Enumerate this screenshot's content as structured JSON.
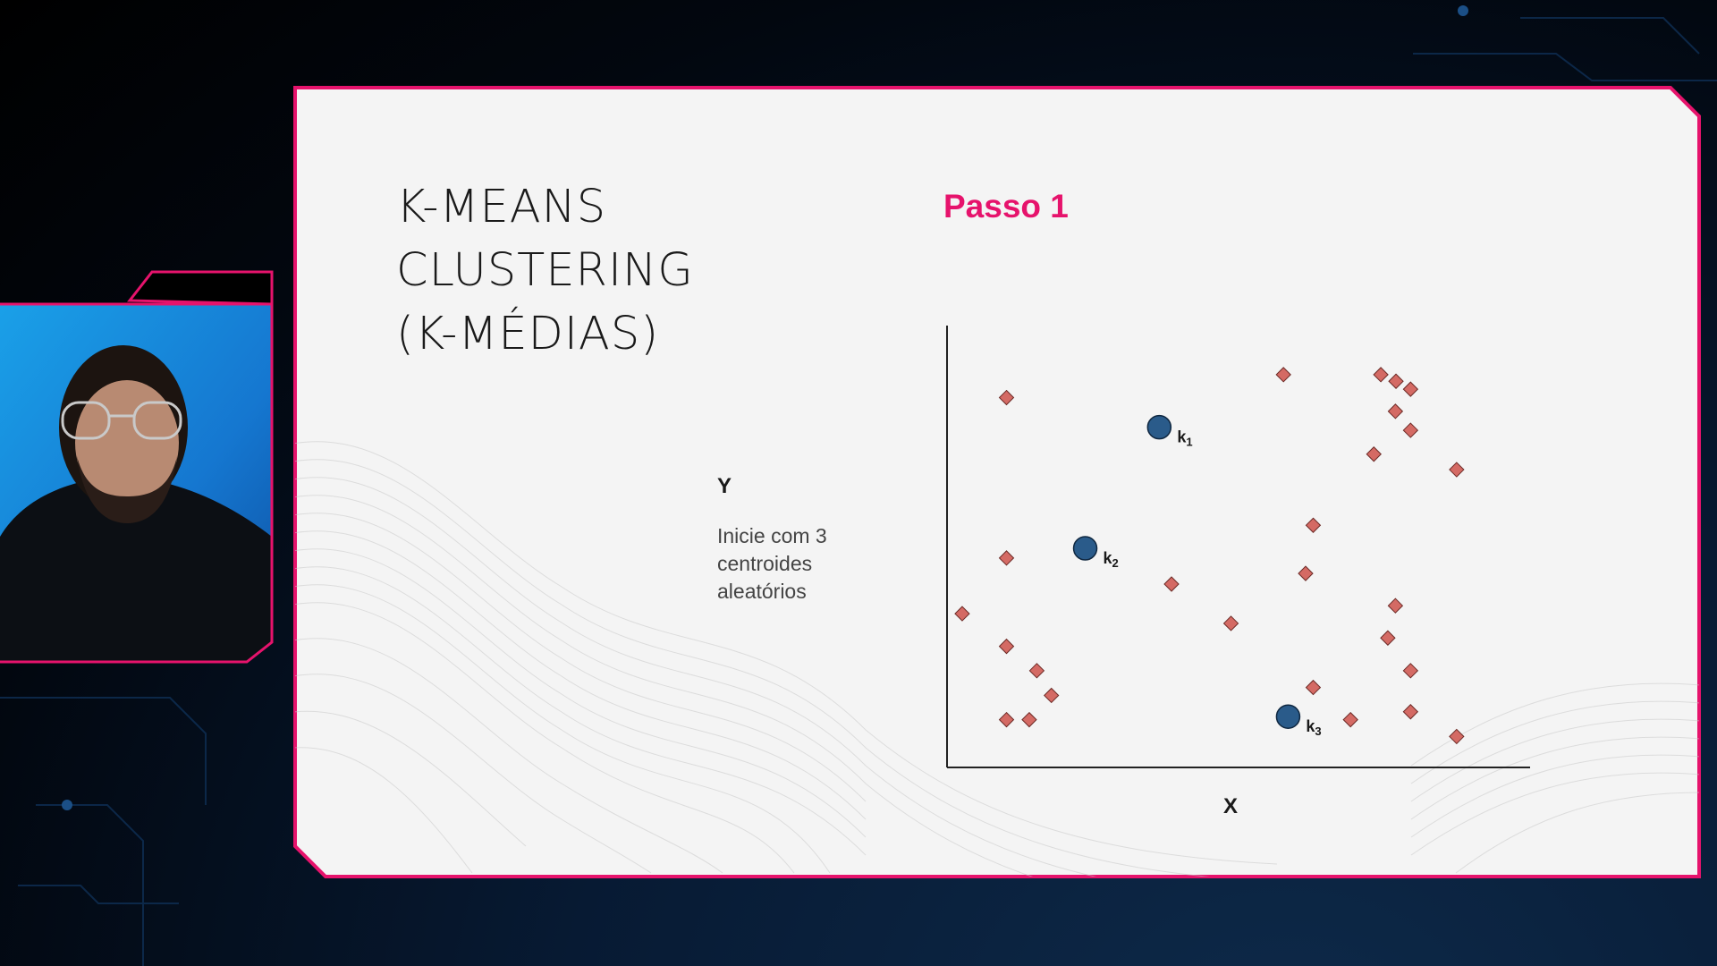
{
  "slide": {
    "title_lines": [
      "K-MEANS",
      "CLUSTERING",
      "(K-MÉDIAS)"
    ],
    "step_label": "Passo 1",
    "y_label": "Y",
    "x_label": "X",
    "caption_lines": [
      "Inicie com 3",
      "centroides",
      "aleatórios"
    ]
  },
  "colors": {
    "accent": "#e6136c",
    "slide_background": "#f4f4f4",
    "point_color": "#d46a64",
    "centroid_color": "#2a5b8a"
  },
  "chart_data": {
    "type": "scatter",
    "xlabel": "X",
    "ylabel": "Y",
    "title": "Passo 1",
    "xlim": [
      0,
      100
    ],
    "ylim": [
      0,
      100
    ],
    "series": [
      {
        "name": "",
        "points": [
          {
            "x": 10.2,
            "y": 83.7
          },
          {
            "x": 57.7,
            "y": 88.9
          },
          {
            "x": 74.4,
            "y": 88.9
          },
          {
            "x": 77.0,
            "y": 87.4
          },
          {
            "x": 79.5,
            "y": 85.6
          },
          {
            "x": 76.9,
            "y": 80.6
          },
          {
            "x": 79.5,
            "y": 76.3
          },
          {
            "x": 73.2,
            "y": 70.9
          },
          {
            "x": 87.4,
            "y": 67.4
          },
          {
            "x": 62.8,
            "y": 54.8
          },
          {
            "x": 10.2,
            "y": 47.4
          },
          {
            "x": 61.5,
            "y": 43.9
          },
          {
            "x": 38.5,
            "y": 41.5
          },
          {
            "x": 2.6,
            "y": 34.8
          },
          {
            "x": 76.9,
            "y": 36.6
          },
          {
            "x": 48.7,
            "y": 32.6
          },
          {
            "x": 75.6,
            "y": 29.3
          },
          {
            "x": 10.2,
            "y": 27.4
          },
          {
            "x": 15.4,
            "y": 21.9
          },
          {
            "x": 79.5,
            "y": 21.9
          },
          {
            "x": 17.9,
            "y": 16.3
          },
          {
            "x": 62.8,
            "y": 18.1
          },
          {
            "x": 10.2,
            "y": 10.8
          },
          {
            "x": 14.1,
            "y": 10.8
          },
          {
            "x": 69.2,
            "y": 10.8
          },
          {
            "x": 79.5,
            "y": 12.6
          },
          {
            "x": 87.4,
            "y": 7.0
          }
        ]
      }
    ],
    "centroids": [
      {
        "label": "k",
        "subscript": "1",
        "x": 36.4,
        "y": 77.0
      },
      {
        "label": "k",
        "subscript": "2",
        "x": 23.7,
        "y": 49.6
      },
      {
        "label": "k",
        "subscript": "3",
        "x": 58.5,
        "y": 11.5
      }
    ]
  }
}
